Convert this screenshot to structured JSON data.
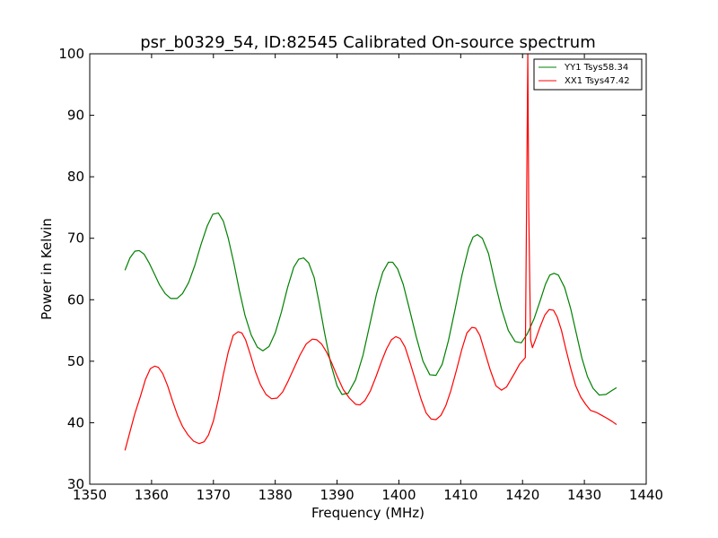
{
  "chart_data": {
    "type": "line",
    "title": "psr_b0329_54, ID:82545 Calibrated On-source spectrum",
    "xlabel": "Frequency (MHz)",
    "ylabel": "Power in Kelvin",
    "xlim": [
      1350,
      1440
    ],
    "ylim": [
      30,
      100
    ],
    "xticks": [
      1350,
      1360,
      1370,
      1380,
      1390,
      1400,
      1410,
      1420,
      1430,
      1440
    ],
    "yticks": [
      30,
      40,
      50,
      60,
      70,
      80,
      90,
      100
    ],
    "grid": false,
    "legend_position": "top-right",
    "series": [
      {
        "name": "YY1 Tsys58.34",
        "color": "#008000",
        "x": [
          1355.7,
          1356.5,
          1357.3,
          1358.0,
          1358.8,
          1359.6,
          1360.5,
          1361.3,
          1362.2,
          1363.1,
          1364.1,
          1365.0,
          1366.0,
          1367.0,
          1368.0,
          1369.0,
          1369.9,
          1370.8,
          1371.6,
          1372.4,
          1373.3,
          1374.2,
          1375.1,
          1376.1,
          1377.1,
          1378.0,
          1379.0,
          1380.0,
          1381.0,
          1382.0,
          1383.0,
          1383.8,
          1384.6,
          1385.4,
          1386.3,
          1387.1,
          1388.0,
          1389.0,
          1390.0,
          1390.8,
          1391.8,
          1393.0,
          1394.2,
          1395.3,
          1396.4,
          1397.4,
          1398.3,
          1399.0,
          1399.8,
          1400.7,
          1401.7,
          1402.8,
          1403.9,
          1405.0,
          1406.0,
          1407.0,
          1408.0,
          1409.1,
          1410.2,
          1411.3,
          1412.0,
          1412.7,
          1413.5,
          1414.5,
          1415.5,
          1416.6,
          1417.7,
          1418.8,
          1419.8,
          1420.8,
          1421.9,
          1422.9,
          1423.7,
          1424.4,
          1425.1,
          1425.8,
          1426.8,
          1427.8,
          1428.7,
          1429.6,
          1430.5,
          1431.4,
          1432.4,
          1433.5,
          1434.4,
          1435.2
        ],
        "y": [
          64.8,
          66.8,
          67.9,
          68.0,
          67.4,
          66.0,
          64.1,
          62.4,
          61.0,
          60.2,
          60.2,
          61.0,
          62.8,
          65.6,
          69.0,
          72.0,
          73.9,
          74.1,
          72.8,
          70.0,
          66.0,
          61.5,
          57.5,
          54.3,
          52.3,
          51.7,
          52.4,
          54.6,
          58.0,
          62.0,
          65.3,
          66.6,
          66.8,
          66.0,
          63.6,
          59.5,
          54.5,
          49.5,
          46.0,
          44.6,
          44.8,
          47.0,
          51.0,
          56.0,
          61.0,
          64.5,
          66.1,
          66.1,
          65.0,
          62.5,
          58.5,
          54.0,
          50.0,
          47.8,
          47.7,
          49.5,
          53.3,
          58.5,
          64.0,
          68.5,
          70.2,
          70.6,
          70.0,
          67.5,
          63.0,
          58.5,
          55.0,
          53.2,
          53.0,
          54.5,
          57.0,
          60.0,
          62.5,
          64.0,
          64.3,
          64.0,
          62.0,
          58.5,
          54.5,
          50.5,
          47.5,
          45.6,
          44.5,
          44.6,
          45.2,
          45.7
        ]
      },
      {
        "name": "XX1 Tsys47.42",
        "color": "#ff0000",
        "x": [
          1355.7,
          1356.5,
          1357.3,
          1358.2,
          1359.0,
          1359.8,
          1360.5,
          1361.1,
          1361.8,
          1362.6,
          1363.4,
          1364.2,
          1365.0,
          1365.9,
          1366.8,
          1367.7,
          1368.5,
          1369.2,
          1370.0,
          1370.8,
          1371.6,
          1372.4,
          1373.2,
          1374.0,
          1374.6,
          1375.2,
          1376.0,
          1376.8,
          1377.6,
          1378.5,
          1379.4,
          1380.3,
          1381.2,
          1382.1,
          1383.0,
          1384.0,
          1385.0,
          1386.0,
          1386.7,
          1387.5,
          1388.3,
          1389.1,
          1390.0,
          1391.0,
          1392.0,
          1393.0,
          1393.7,
          1394.5,
          1395.4,
          1396.3,
          1397.2,
          1398.0,
          1398.8,
          1399.5,
          1400.2,
          1401.0,
          1401.8,
          1402.7,
          1403.6,
          1404.4,
          1405.2,
          1406.0,
          1406.8,
          1407.6,
          1408.4,
          1409.3,
          1410.2,
          1411.0,
          1411.8,
          1412.4,
          1413.1,
          1413.9,
          1414.8,
          1415.7,
          1416.6,
          1417.4,
          1418.1,
          1418.8,
          1419.5,
          1420.1,
          1420.45,
          1420.65,
          1420.85,
          1421.0,
          1421.3,
          1421.6,
          1422.1,
          1422.8,
          1423.6,
          1424.3,
          1425.0,
          1425.6,
          1426.3,
          1427.0,
          1427.8,
          1428.6,
          1429.4,
          1430.2,
          1431.0,
          1431.9,
          1432.8,
          1433.7,
          1434.5,
          1435.2
        ],
        "y": [
          35.5,
          38.5,
          41.5,
          44.3,
          47.0,
          48.8,
          49.2,
          49.0,
          48.0,
          46.0,
          43.5,
          41.2,
          39.4,
          38.0,
          37.0,
          36.6,
          36.9,
          38.0,
          40.3,
          43.8,
          47.8,
          51.5,
          54.2,
          54.8,
          54.6,
          53.5,
          51.0,
          48.3,
          46.2,
          44.6,
          43.9,
          44.0,
          45.0,
          46.8,
          48.8,
          51.0,
          52.8,
          53.6,
          53.5,
          52.8,
          51.5,
          49.8,
          47.6,
          45.4,
          44.0,
          43.0,
          42.9,
          43.6,
          45.2,
          47.5,
          50.0,
          52.0,
          53.5,
          54.0,
          53.7,
          52.3,
          49.8,
          46.8,
          43.8,
          41.6,
          40.6,
          40.5,
          41.2,
          42.8,
          45.2,
          48.5,
          52.0,
          54.6,
          55.5,
          55.4,
          54.2,
          51.5,
          48.5,
          46.0,
          45.3,
          45.8,
          47.0,
          48.2,
          49.5,
          50.2,
          50.6,
          75.0,
          100.0,
          75.0,
          53.5,
          52.2,
          53.5,
          55.5,
          57.5,
          58.4,
          58.3,
          57.2,
          55.0,
          52.0,
          48.8,
          46.0,
          44.2,
          43.0,
          42.0,
          41.7,
          41.2,
          40.7,
          40.2,
          39.7
        ]
      }
    ]
  }
}
